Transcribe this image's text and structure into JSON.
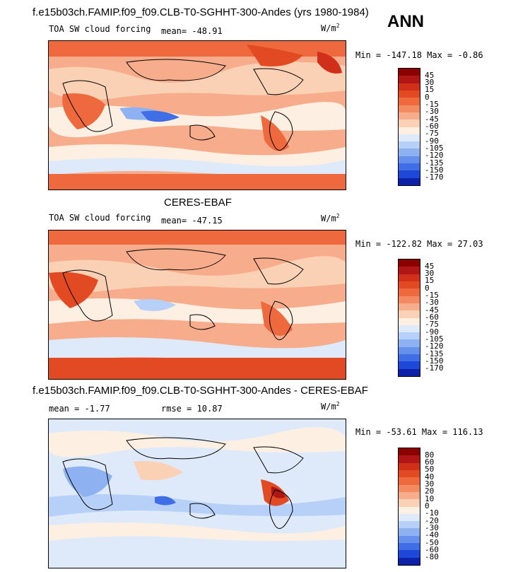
{
  "page_title": "f.e15b03ch.FAMIP.f09_f09.CLB-T0-SGHHT-300-Andes (yrs 1980-1984)",
  "season": "ANN",
  "panels": [
    {
      "subtitle": "",
      "field_label": "TOA SW cloud forcing",
      "stat1": "mean=  -48.91",
      "stat2": "",
      "units": "W/m",
      "units_sup": "2",
      "minmax": "Min = -147.18 Max =  -0.86",
      "colorbar": {
        "labels": [
          "45",
          "30",
          "15",
          "0",
          "-15",
          "-30",
          "-45",
          "-60",
          "-75",
          "-90",
          "-105",
          "-120",
          "-135",
          "-150",
          "-170"
        ],
        "colors": [
          "#8b0000",
          "#b01616",
          "#d0301a",
          "#e24a23",
          "#ee6a3e",
          "#f48a62",
          "#f7ac8c",
          "#fbd1b6",
          "#fdf0e3",
          "#deeafa",
          "#b7d0f7",
          "#8eb2f1",
          "#6591ec",
          "#3f6ee6",
          "#1e48d8",
          "#0d22a8"
        ]
      }
    },
    {
      "subtitle": "CERES-EBAF",
      "field_label": "TOA SW cloud forcing",
      "stat1": "mean=  -47.15",
      "stat2": "",
      "units": "W/m",
      "units_sup": "2",
      "minmax": "Min = -122.82 Max =  27.03",
      "colorbar": {
        "labels": [
          "45",
          "30",
          "15",
          "0",
          "-15",
          "-30",
          "-45",
          "-60",
          "-75",
          "-90",
          "-105",
          "-120",
          "-135",
          "-150",
          "-170"
        ],
        "colors": [
          "#8b0000",
          "#b01616",
          "#d0301a",
          "#e24a23",
          "#ee6a3e",
          "#f48a62",
          "#f7ac8c",
          "#fbd1b6",
          "#fdf0e3",
          "#deeafa",
          "#b7d0f7",
          "#8eb2f1",
          "#6591ec",
          "#3f6ee6",
          "#1e48d8",
          "#0d22a8"
        ]
      }
    },
    {
      "subtitle": "f.e15b03ch.FAMIP.f09_f09.CLB-T0-SGHHT-300-Andes - CERES-EBAF",
      "field_label": "",
      "stat1": "mean =   -1.77",
      "stat2": "rmse =   10.87",
      "units": "W/m",
      "units_sup": "2",
      "minmax": "Min = -53.61 Max = 116.13",
      "colorbar": {
        "labels": [
          "80",
          "60",
          "50",
          "40",
          "30",
          "20",
          "10",
          "0",
          "-10",
          "-20",
          "-30",
          "-40",
          "-50",
          "-60",
          "-80"
        ],
        "colors": [
          "#8b0000",
          "#b01616",
          "#d0301a",
          "#e24a23",
          "#ee6a3e",
          "#f48a62",
          "#f7ac8c",
          "#fbd1b6",
          "#fdf0e3",
          "#deeafa",
          "#b7d0f7",
          "#8eb2f1",
          "#6591ec",
          "#3f6ee6",
          "#1e48d8",
          "#0d22a8"
        ]
      }
    }
  ]
}
